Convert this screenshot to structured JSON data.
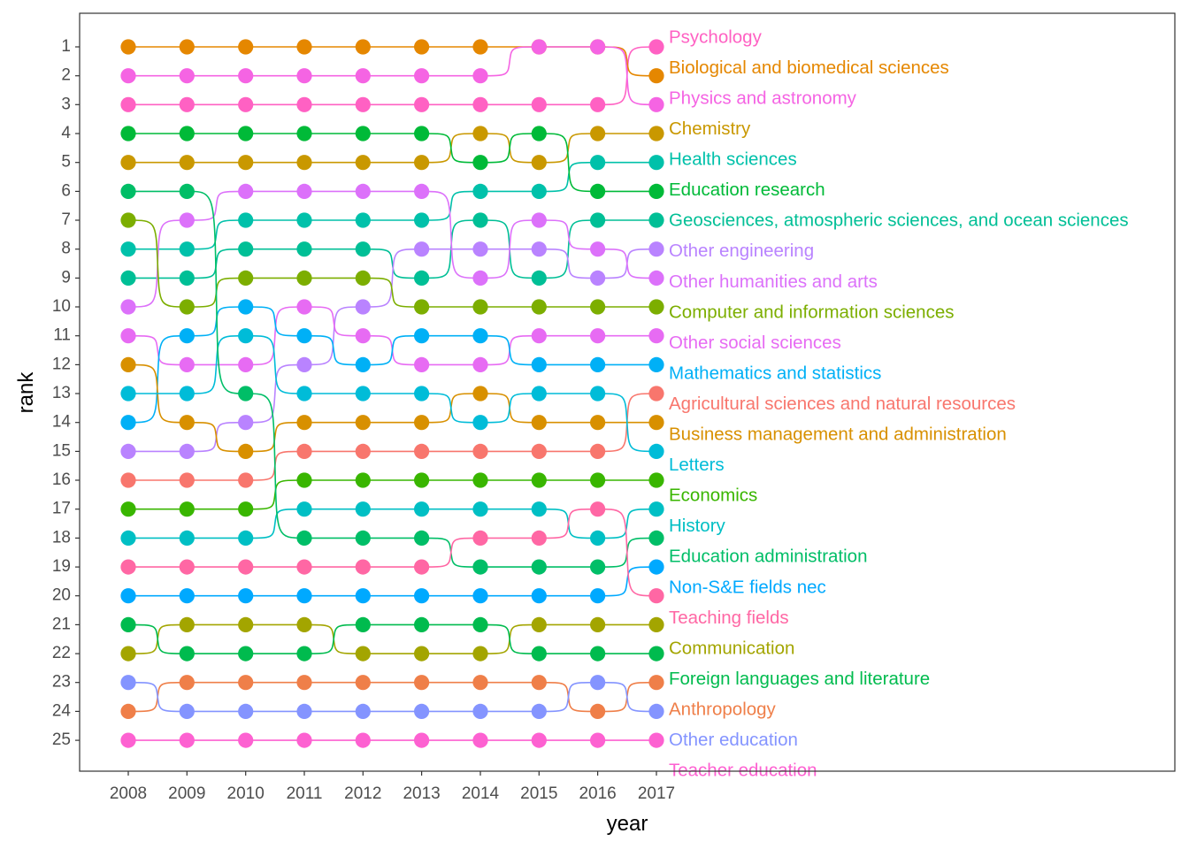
{
  "chart_data": {
    "type": "line",
    "subtype": "bump",
    "xlabel": "year",
    "ylabel": "rank",
    "x": [
      2008,
      2009,
      2010,
      2011,
      2012,
      2013,
      2014,
      2015,
      2016,
      2017
    ],
    "y_ticks": [
      1,
      2,
      3,
      4,
      5,
      6,
      7,
      8,
      9,
      10,
      11,
      12,
      13,
      14,
      15,
      16,
      17,
      18,
      19,
      20,
      21,
      22,
      23,
      24,
      25
    ],
    "y_reversed": true,
    "ylim": [
      25.5,
      0.5
    ],
    "grid": false,
    "legend": "labels at right end of lines",
    "series": [
      {
        "name": "Psychology",
        "color": "#FF61C3",
        "ranks": [
          3,
          3,
          3,
          3,
          3,
          3,
          3,
          3,
          3,
          1
        ]
      },
      {
        "name": "Biological and biomedical sciences",
        "color": "#E58700",
        "ranks": [
          1,
          1,
          1,
          1,
          1,
          1,
          1,
          1,
          1,
          2
        ]
      },
      {
        "name": "Physics and astronomy",
        "color": "#F564E3",
        "ranks": [
          2,
          2,
          2,
          2,
          2,
          2,
          2,
          1,
          1,
          3
        ]
      },
      {
        "name": "Chemistry",
        "color": "#C99800",
        "ranks": [
          5,
          5,
          5,
          5,
          5,
          5,
          4,
          5,
          4,
          4
        ]
      },
      {
        "name": "Health sciences",
        "color": "#00C1AA",
        "ranks": [
          8,
          8,
          7,
          7,
          7,
          7,
          6,
          6,
          5,
          5
        ]
      },
      {
        "name": "Education research",
        "color": "#00BA38",
        "ranks": [
          4,
          4,
          4,
          4,
          4,
          4,
          5,
          4,
          6,
          6
        ]
      },
      {
        "name": "Geosciences, atmospheric sciences, and ocean sciences",
        "color": "#00BF96",
        "ranks": [
          9,
          9,
          8,
          8,
          8,
          9,
          7,
          9,
          7,
          7
        ]
      },
      {
        "name": "Other engineering",
        "color": "#B983FF",
        "ranks": [
          15,
          15,
          14,
          12,
          10,
          8,
          8,
          8,
          9,
          8
        ]
      },
      {
        "name": "Other humanities and arts",
        "color": "#DC71FA",
        "ranks": [
          10,
          7,
          6,
          6,
          6,
          6,
          9,
          7,
          8,
          9
        ]
      },
      {
        "name": "Computer and information sciences",
        "color": "#7CAE00",
        "ranks": [
          7,
          10,
          9,
          9,
          9,
          10,
          10,
          10,
          10,
          10
        ]
      },
      {
        "name": "Other social sciences",
        "color": "#E76BF3",
        "ranks": [
          11,
          12,
          12,
          10,
          11,
          12,
          12,
          11,
          11,
          11
        ]
      },
      {
        "name": "Mathematics and statistics",
        "color": "#00B0F6",
        "ranks": [
          14,
          11,
          10,
          11,
          12,
          11,
          11,
          12,
          12,
          12
        ]
      },
      {
        "name": "Agricultural sciences and natural resources",
        "color": "#F8766D",
        "ranks": [
          16,
          16,
          16,
          15,
          15,
          15,
          15,
          15,
          15,
          13
        ]
      },
      {
        "name": "Business management and administration",
        "color": "#D89000",
        "ranks": [
          12,
          14,
          15,
          14,
          14,
          14,
          13,
          14,
          14,
          14
        ]
      },
      {
        "name": "Letters",
        "color": "#00BCD8",
        "ranks": [
          13,
          13,
          11,
          13,
          13,
          13,
          14,
          13,
          13,
          15
        ]
      },
      {
        "name": "Economics",
        "color": "#39B600",
        "ranks": [
          17,
          17,
          17,
          16,
          16,
          16,
          16,
          16,
          16,
          16
        ]
      },
      {
        "name": "History",
        "color": "#00BFC4",
        "ranks": [
          18,
          18,
          18,
          17,
          17,
          17,
          17,
          17,
          18,
          17
        ]
      },
      {
        "name": "Education administration",
        "color": "#00BE67",
        "ranks": [
          6,
          6,
          13,
          18,
          18,
          18,
          19,
          19,
          19,
          18
        ]
      },
      {
        "name": "Non-S&E fields nec",
        "color": "#00A9FF",
        "ranks": [
          20,
          20,
          20,
          20,
          20,
          20,
          20,
          20,
          20,
          19
        ]
      },
      {
        "name": "Teaching fields",
        "color": "#FF67A4",
        "ranks": [
          19,
          19,
          19,
          19,
          19,
          19,
          18,
          18,
          17,
          20
        ]
      },
      {
        "name": "Communication",
        "color": "#A3A500",
        "ranks": [
          22,
          21,
          21,
          21,
          22,
          22,
          22,
          21,
          21,
          21
        ]
      },
      {
        "name": "Foreign languages and literature",
        "color": "#00BB4E",
        "ranks": [
          21,
          22,
          22,
          22,
          21,
          21,
          21,
          22,
          22,
          22
        ]
      },
      {
        "name": "Anthropology",
        "color": "#EF7F49",
        "ranks": [
          24,
          23,
          23,
          23,
          23,
          23,
          23,
          23,
          24,
          23
        ]
      },
      {
        "name": "Other education",
        "color": "#8494FF",
        "ranks": [
          23,
          24,
          24,
          24,
          24,
          24,
          24,
          24,
          23,
          24
        ]
      },
      {
        "name": "Teacher education",
        "color": "#FD61D1",
        "ranks": [
          25,
          25,
          25,
          25,
          25,
          25,
          25,
          25,
          25,
          25
        ]
      }
    ]
  }
}
